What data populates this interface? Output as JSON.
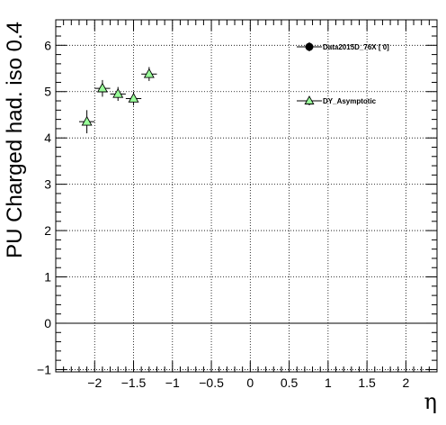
{
  "chart_data": {
    "type": "scatter",
    "xlabel": "η",
    "ylabel": "PU Charged had. iso 0.4",
    "xlim": [
      -2.5,
      2.4
    ],
    "ylim": [
      -1.05,
      6.55
    ],
    "xticks": [
      -2,
      -1.5,
      -1,
      -0.5,
      0,
      0.5,
      1,
      1.5,
      2
    ],
    "xtick_labels": [
      "−2",
      "−1.5",
      "−1",
      "−0.5",
      "0",
      "0.5",
      "1",
      "1.5",
      "2"
    ],
    "yticks": [
      -1,
      0,
      1,
      2,
      3,
      4,
      5,
      6
    ],
    "ytick_labels": [
      "−1",
      "0",
      "1",
      "2",
      "3",
      "4",
      "5",
      "6"
    ],
    "grid": true,
    "reference_line_y": 0,
    "legend_placement": "top-right",
    "series": [
      {
        "name": "Data2015D_76X [       0]",
        "marker": "circle",
        "color": "#000000",
        "x": [],
        "y": []
      },
      {
        "name": "DY_Asymptotic",
        "marker": "triangle",
        "color": "#99ff99",
        "x": [
          -2.1,
          -1.9,
          -1.7,
          -1.5,
          -1.3
        ],
        "y": [
          4.35,
          5.07,
          4.95,
          4.85,
          5.38
        ],
        "x_err": [
          0.1,
          0.1,
          0.1,
          0.1,
          0.1
        ],
        "y_err": [
          0.25,
          0.18,
          0.15,
          0.15,
          0.15
        ]
      }
    ]
  }
}
